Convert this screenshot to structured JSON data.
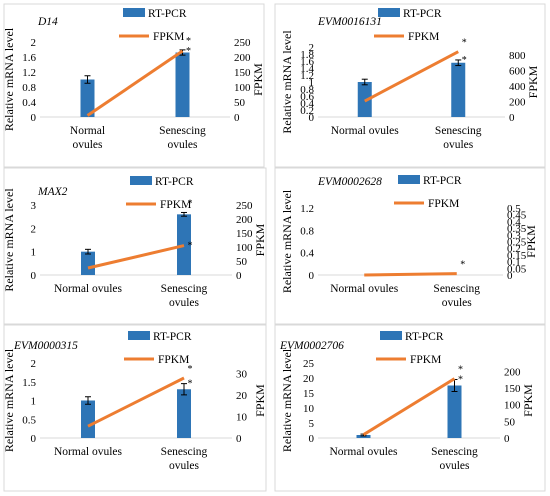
{
  "figure": {
    "background": "#ffffff"
  },
  "colors": {
    "bar": "#2e75b6",
    "line": "#ed7d31",
    "error": "#000000",
    "frame": "#d9d9d9"
  },
  "chart_data": [
    {
      "type": "bar",
      "title": "D14",
      "categories": [
        [
          "Normal",
          "ovules"
        ],
        [
          "Senescing",
          "ovules"
        ]
      ],
      "ylabel": "Relative mRNA level",
      "y2label": "FPKM",
      "ylim": [
        0,
        2
      ],
      "yticks": [
        "0",
        "0.4",
        "0.8",
        "1.2",
        "1.6",
        "2"
      ],
      "y2lim": [
        0,
        250
      ],
      "y2ticks": [
        "0",
        "50",
        "100",
        "150",
        "200",
        "250"
      ],
      "series": [
        {
          "name": "RT-PCR",
          "type": "bar",
          "axis": "left",
          "values": [
            1.0,
            1.72
          ],
          "errors": [
            0.1,
            0.07
          ]
        },
        {
          "name": "FPKM",
          "type": "line",
          "axis": "right",
          "values": [
            5,
            220
          ]
        }
      ],
      "annotations": [
        "*",
        "*"
      ]
    },
    {
      "type": "bar",
      "title": "EVM0016131",
      "categories": [
        [
          "Normal ovules"
        ],
        [
          "Senescing",
          "ovules"
        ]
      ],
      "ylabel": "Relative mRNA level",
      "y2label": "FPKM",
      "ylim": [
        0,
        2
      ],
      "yticks": [
        "0",
        "0.2",
        "0.4",
        "0.6",
        "0.8",
        "1",
        "1.2",
        "1.4",
        "1.6",
        "1.8",
        "2"
      ],
      "y2lim": [
        0,
        900
      ],
      "y2ticks": [
        "0",
        "200",
        "400",
        "600",
        "800"
      ],
      "series": [
        {
          "name": "RT-PCR",
          "type": "bar",
          "axis": "left",
          "values": [
            1.0,
            1.55
          ],
          "errors": [
            0.08,
            0.08
          ]
        },
        {
          "name": "FPKM",
          "type": "line",
          "axis": "right",
          "values": [
            205,
            840
          ]
        }
      ],
      "annotations": [
        "*",
        "*"
      ]
    },
    {
      "type": "bar",
      "title": "MAX2",
      "categories": [
        [
          "Normal ovules"
        ],
        [
          "Senescing",
          "ovules"
        ]
      ],
      "ylabel": "Relative mRNA level",
      "y2label": "FPKM",
      "ylim": [
        0,
        3
      ],
      "yticks": [
        "0",
        "1",
        "2",
        "3"
      ],
      "y2lim": [
        0,
        250
      ],
      "y2ticks": [
        "0",
        "50",
        "100",
        "150",
        "200",
        "250"
      ],
      "series": [
        {
          "name": "RT-PCR",
          "type": "bar",
          "axis": "left",
          "values": [
            1.0,
            2.6
          ],
          "errors": [
            0.1,
            0.08
          ]
        },
        {
          "name": "FPKM",
          "type": "line",
          "axis": "right",
          "values": [
            25,
            105
          ]
        }
      ],
      "annotations": [
        "*",
        "*"
      ]
    },
    {
      "type": "bar",
      "title": "EVM0002628",
      "categories": [
        [
          "Normal ovules"
        ],
        [
          "Senescing",
          "ovules"
        ]
      ],
      "ylabel": "Relative mRNA level",
      "y2label": "FPKM",
      "ylim": [
        0,
        1.2
      ],
      "yticks": [
        "0",
        "0.4",
        "0.8",
        "1.2"
      ],
      "y2lim": [
        0,
        0.5
      ],
      "y2ticks": [
        "0",
        "0.05",
        "0.1",
        "0.15",
        "0.2",
        "0.25",
        "0.3",
        "0.35",
        "0.4",
        "0.45",
        "0.5"
      ],
      "series": [
        {
          "name": "RT-PCR",
          "type": "bar",
          "axis": "left",
          "values": [
            0,
            0
          ],
          "errors": [
            0,
            0
          ]
        },
        {
          "name": "FPKM",
          "type": "line",
          "axis": "right",
          "values": [
            0,
            0.01
          ]
        }
      ],
      "annotations": [
        "*"
      ]
    },
    {
      "type": "bar",
      "title": "EVM0000315",
      "categories": [
        [
          "Normal ovules"
        ],
        [
          "Senescing",
          "ovules"
        ]
      ],
      "ylabel": "Relative mRNA level",
      "y2label": "FPKM",
      "ylim": [
        0,
        2
      ],
      "yticks": [
        "0",
        "0.5",
        "1",
        "1.5",
        "2"
      ],
      "y2lim": [
        0,
        35
      ],
      "y2ticks": [
        "0",
        "10",
        "20",
        "30"
      ],
      "series": [
        {
          "name": "RT-PCR",
          "type": "bar",
          "axis": "left",
          "values": [
            1.0,
            1.3
          ],
          "errors": [
            0.1,
            0.15
          ]
        },
        {
          "name": "FPKM",
          "type": "line",
          "axis": "right",
          "values": [
            5.5,
            28
          ]
        }
      ],
      "annotations": [
        "*",
        "*"
      ]
    },
    {
      "type": "bar",
      "title": "EVM0002706",
      "categories": [
        [
          "Normal ovules"
        ],
        [
          "Senescing",
          "ovules"
        ]
      ],
      "ylabel": "Relative mRNA level",
      "y2label": "FPKM",
      "ylim": [
        0,
        25
      ],
      "yticks": [
        "0",
        "5",
        "10",
        "15",
        "20",
        "25"
      ],
      "y2lim": [
        0,
        225
      ],
      "y2ticks": [
        "0",
        "50",
        "100",
        "150",
        "200"
      ],
      "series": [
        {
          "name": "RT-PCR",
          "type": "bar",
          "axis": "left",
          "values": [
            1.0,
            17.5
          ],
          "errors": [
            0.3,
            2.0
          ]
        },
        {
          "name": "FPKM",
          "type": "line",
          "axis": "right",
          "values": [
            10,
            178
          ]
        }
      ],
      "annotations": [
        "*",
        "*"
      ]
    }
  ]
}
